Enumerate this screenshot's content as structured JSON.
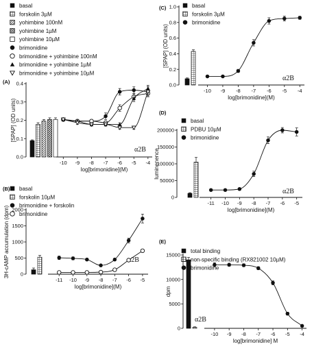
{
  "chart_data": [
    {
      "id": "A",
      "panel_label": "(A)",
      "type": "line",
      "ylabel": "[SPAP] (OD units)",
      "xlabel": "log[brimonidine](M)",
      "receptor": "α2B",
      "ylim": [
        0,
        0.45
      ],
      "yticks": [
        "0.0",
        "0.1",
        "0.2",
        "0.3",
        "0.4"
      ],
      "xlim": [
        -10.5,
        -3.7
      ],
      "xticks": [
        "-10",
        "-9",
        "-8",
        "-7",
        "-6",
        "-5",
        "-4"
      ],
      "legend": [
        {
          "name": "basal",
          "marker": "solid-square"
        },
        {
          "name": "forskolin 3µM",
          "marker": "grid-square"
        },
        {
          "name": "yohimbine 100nM",
          "marker": "diag-square"
        },
        {
          "name": "yohimbine 1µM",
          "marker": "cross-square"
        },
        {
          "name": "yohimbine 10µM",
          "marker": "open-square"
        },
        {
          "name": "brimonidine",
          "marker": "filled-circle"
        },
        {
          "name": "brimonidine + yohimbine 100nM",
          "marker": "open-circle"
        },
        {
          "name": "brimonidine + yohimbine 1µM",
          "marker": "filled-triangle"
        },
        {
          "name": "brimonidine + yohimbine 10µM",
          "marker": "open-triangle-down"
        }
      ],
      "bars": [
        {
          "name": "basal",
          "value": 0.1,
          "err": 0.005,
          "pattern": "solid"
        },
        {
          "name": "forskolin 3µM",
          "value": 0.2,
          "err": 0.01,
          "pattern": "grid"
        },
        {
          "name": "yohimbine 100nM",
          "value": 0.22,
          "err": 0.01,
          "pattern": "diag"
        },
        {
          "name": "yohimbine 1µM",
          "value": 0.23,
          "err": 0.01,
          "pattern": "cross"
        },
        {
          "name": "yohimbine 10µM",
          "value": 0.23,
          "err": 0.01,
          "pattern": "open"
        }
      ],
      "series": [
        {
          "name": "brimonidine",
          "marker": "filled-circle",
          "x": [
            -10,
            -9,
            -8,
            -7,
            -6,
            -5,
            -4
          ],
          "y": [
            0.23,
            0.22,
            0.22,
            0.25,
            0.4,
            0.41,
            0.4
          ],
          "err": [
            0.01,
            0.01,
            0.01,
            0.02,
            0.02,
            0.02,
            0.03
          ]
        },
        {
          "name": "brimonidine + yohimbine 100nM",
          "marker": "open-circle",
          "x": [
            -10,
            -9,
            -8,
            -7,
            -6,
            -5,
            -4
          ],
          "y": [
            0.23,
            0.22,
            0.22,
            0.21,
            0.3,
            0.37,
            0.39
          ],
          "err": [
            0.01,
            0.01,
            0.01,
            0.01,
            0.02,
            0.02,
            0.02
          ]
        },
        {
          "name": "brimonidine + yohimbine 1µM",
          "marker": "filled-triangle",
          "x": [
            -10,
            -9,
            -8,
            -7,
            -6,
            -5,
            -4
          ],
          "y": [
            0.23,
            0.22,
            0.2,
            0.2,
            0.2,
            0.36,
            0.42
          ],
          "err": [
            0.01,
            0.01,
            0.01,
            0.01,
            0.01,
            0.02,
            0.02
          ]
        },
        {
          "name": "brimonidine + yohimbine 10µM",
          "marker": "open-triangle-down",
          "x": [
            -10,
            -9,
            -8,
            -7,
            -6,
            -5,
            -4
          ],
          "y": [
            0.23,
            0.21,
            0.2,
            0.2,
            0.18,
            0.18,
            0.4
          ],
          "err": [
            0.01,
            0.01,
            0.01,
            0.01,
            0.01,
            0.01,
            0.02
          ]
        }
      ]
    },
    {
      "id": "B",
      "panel_label": "(B)",
      "type": "line",
      "ylabel": "3H-cAMP accumulation (dpm)",
      "xlabel": "log[brimonidine](M)",
      "receptor": "α2B",
      "ylim": [
        0,
        2200
      ],
      "yticks": [
        "0",
        "500",
        "1000",
        "1500",
        "2000"
      ],
      "xlim": [
        -11.8,
        -4.6
      ],
      "xticks": [
        "-11",
        "-10",
        "-9",
        "-8",
        "-7",
        "-6",
        "-5"
      ],
      "legend": [
        {
          "name": "basal",
          "marker": "solid-square"
        },
        {
          "name": "forskolin 10µM",
          "marker": "grid-square"
        },
        {
          "name": "brimonidine + forskolin",
          "marker": "filled-circle"
        },
        {
          "name": "brimonidine",
          "marker": "open-circle"
        }
      ],
      "bars": [
        {
          "name": "basal",
          "value": 150,
          "err": 60,
          "pattern": "solid"
        },
        {
          "name": "forskolin 10µM",
          "value": 580,
          "err": 60,
          "pattern": "grid"
        }
      ],
      "series": [
        {
          "name": "brimonidine + forskolin",
          "marker": "filled-circle",
          "x": [
            -11,
            -10,
            -9,
            -8,
            -7,
            -6,
            -5
          ],
          "y": [
            560,
            540,
            500,
            300,
            500,
            1150,
            1900
          ],
          "err": [
            60,
            50,
            40,
            30,
            40,
            80,
            150
          ]
        },
        {
          "name": "brimonidine",
          "marker": "open-circle",
          "x": [
            -11,
            -10,
            -9,
            -8,
            -7,
            -6,
            -5
          ],
          "y": [
            60,
            60,
            60,
            70,
            150,
            480,
            800
          ],
          "err": [
            20,
            20,
            20,
            20,
            30,
            40,
            50
          ]
        }
      ]
    },
    {
      "id": "C",
      "panel_label": "(C)",
      "type": "line",
      "ylabel": "[SPAP] (OD units)",
      "xlabel": "log[brimonidine](M)",
      "receptor": "α2B",
      "ylim": [
        0,
        1.0
      ],
      "yticks": [
        "0.0",
        "0.2",
        "0.4",
        "0.6",
        "0.8",
        "1.0"
      ],
      "xlim": [
        -10.6,
        -3.7
      ],
      "xticks": [
        "-10",
        "-9",
        "-8",
        "-7",
        "-6",
        "-5",
        "-4"
      ],
      "legend": [
        {
          "name": "basal",
          "marker": "solid-square"
        },
        {
          "name": "forskolin 3µM",
          "marker": "grid-square"
        },
        {
          "name": "brimonidine",
          "marker": "filled-circle"
        }
      ],
      "bars": [
        {
          "name": "basal",
          "value": 0.08,
          "err": 0.01,
          "pattern": "solid"
        },
        {
          "name": "forskolin 3µM",
          "value": 0.43,
          "err": 0.02,
          "pattern": "grid"
        }
      ],
      "series": [
        {
          "name": "brimonidine",
          "marker": "filled-circle",
          "x": [
            -10,
            -9,
            -8,
            -7,
            -6,
            -5,
            -4
          ],
          "y": [
            0.11,
            0.11,
            0.18,
            0.54,
            0.82,
            0.85,
            0.86
          ],
          "err": [
            0.01,
            0.01,
            0.02,
            0.04,
            0.04,
            0.03,
            0.02
          ]
        }
      ]
    },
    {
      "id": "D",
      "panel_label": "(D)",
      "type": "line",
      "ylabel": "luminenence",
      "xlabel": "log[brimonidine](M)",
      "receptor": "α2B",
      "ylim": [
        0,
        200000
      ],
      "yticks": [
        "0",
        "50000",
        "100000",
        "150000",
        "200000"
      ],
      "xlim": [
        -11.8,
        -4.6
      ],
      "xticks": [
        "-11",
        "-10",
        "-9",
        "-8",
        "-7",
        "-6",
        "-5"
      ],
      "legend": [
        {
          "name": "basal",
          "marker": "solid-square"
        },
        {
          "name": "PDBU 10µM",
          "marker": "grid-square"
        },
        {
          "name": "brimonidine",
          "marker": "filled-circle"
        }
      ],
      "bars": [
        {
          "name": "basal",
          "value": 12000,
          "err": 2000,
          "pattern": "solid"
        },
        {
          "name": "PDBU 10µM",
          "value": 105000,
          "err": 14000,
          "pattern": "grid"
        }
      ],
      "series": [
        {
          "name": "brimonidine",
          "marker": "filled-circle",
          "x": [
            -11,
            -10,
            -9,
            -8,
            -7,
            -6,
            -5
          ],
          "y": [
            22000,
            22000,
            25000,
            70000,
            170000,
            200000,
            195000
          ],
          "err": [
            2000,
            2000,
            3000,
            8000,
            10000,
            8000,
            12000
          ]
        }
      ]
    },
    {
      "id": "E",
      "panel_label": "(E)",
      "type": "line",
      "ylabel": "dpm",
      "xlabel": "log[brimonidine] M",
      "receptor": "α2B",
      "ylim": [
        0,
        15000
      ],
      "yticks": [
        "0",
        "5000",
        "10000",
        "15000"
      ],
      "xlim": [
        -10.7,
        -3.7
      ],
      "xticks": [
        "-10",
        "-9",
        "-8",
        "-7",
        "-6",
        "-5",
        "-4"
      ],
      "legend": [
        {
          "name": "total binding",
          "marker": "solid-square"
        },
        {
          "name": "non-specific binding (RX821002 10µM)",
          "marker": "grid-square"
        },
        {
          "name": "brimonidine",
          "marker": "filled-circle"
        }
      ],
      "bars": [
        {
          "name": "total binding",
          "value": 14000,
          "err": 500,
          "pattern": "solid"
        },
        {
          "name": "non-specific binding (RX821002 10µM)",
          "value": 200,
          "err": 100,
          "pattern": "grid"
        }
      ],
      "series": [
        {
          "name": "brimonidine",
          "marker": "filled-circle",
          "x": [
            -10,
            -9,
            -8,
            -7,
            -6,
            -5,
            -4
          ],
          "y": [
            13000,
            13000,
            12900,
            12300,
            9300,
            3000,
            500
          ],
          "err": [
            400,
            300,
            300,
            300,
            400,
            300,
            200
          ]
        }
      ]
    }
  ]
}
